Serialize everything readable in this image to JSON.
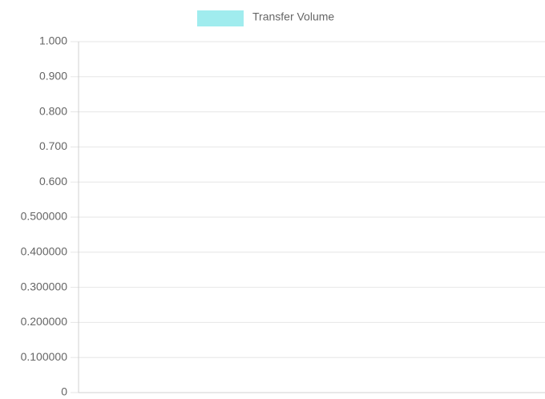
{
  "chart_data": {
    "type": "bar",
    "categories": [],
    "series": [
      {
        "name": "Transfer Volume",
        "color": "#a0ecee",
        "values": []
      }
    ],
    "ylim": [
      0,
      1
    ],
    "yticks": [
      0,
      {
        "value": 0.1,
        "label": "0.100000"
      },
      {
        "value": 0.2,
        "label": "0.200000"
      },
      {
        "value": 0.3,
        "label": "0.300000"
      },
      {
        "value": 0.4,
        "label": "0.400000"
      },
      {
        "value": 0.5,
        "label": "0.500000"
      },
      {
        "value": 0.6,
        "label": "0.600"
      },
      {
        "value": 0.7,
        "label": "0.700"
      },
      {
        "value": 0.8,
        "label": "0.800"
      },
      {
        "value": 0.9,
        "label": "0.900"
      },
      {
        "value": 1,
        "label": "1.000"
      }
    ],
    "grid": true,
    "legend": "top"
  }
}
